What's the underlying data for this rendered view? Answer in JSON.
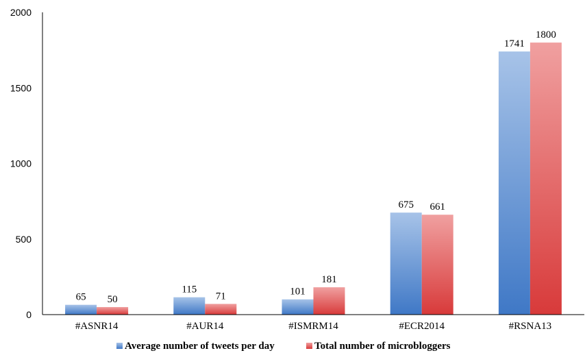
{
  "chart_data": {
    "type": "bar",
    "title": "",
    "xlabel": "",
    "ylabel": "",
    "categories": [
      "#ASNR14",
      "#AUR14",
      "#ISMRM14",
      "#ECR2014",
      "#RSNA13"
    ],
    "series": [
      {
        "name": "Average number of tweets per day",
        "values": [
          65,
          115,
          101,
          675,
          1741
        ],
        "color": "#5b8fd4"
      },
      {
        "name": "Total number of microbloggers",
        "values": [
          50,
          71,
          181,
          661,
          1800
        ],
        "color": "#e05a5a"
      }
    ],
    "ylim": [
      0,
      2000
    ],
    "yticks": [
      "0",
      "500",
      "1000",
      "1500",
      "2000"
    ],
    "data_labels": [
      [
        "65",
        "115",
        "101",
        "675",
        "1741"
      ],
      [
        "50",
        "71",
        "181",
        "661",
        "1800"
      ]
    ],
    "grid": false,
    "legend": "bottom"
  }
}
